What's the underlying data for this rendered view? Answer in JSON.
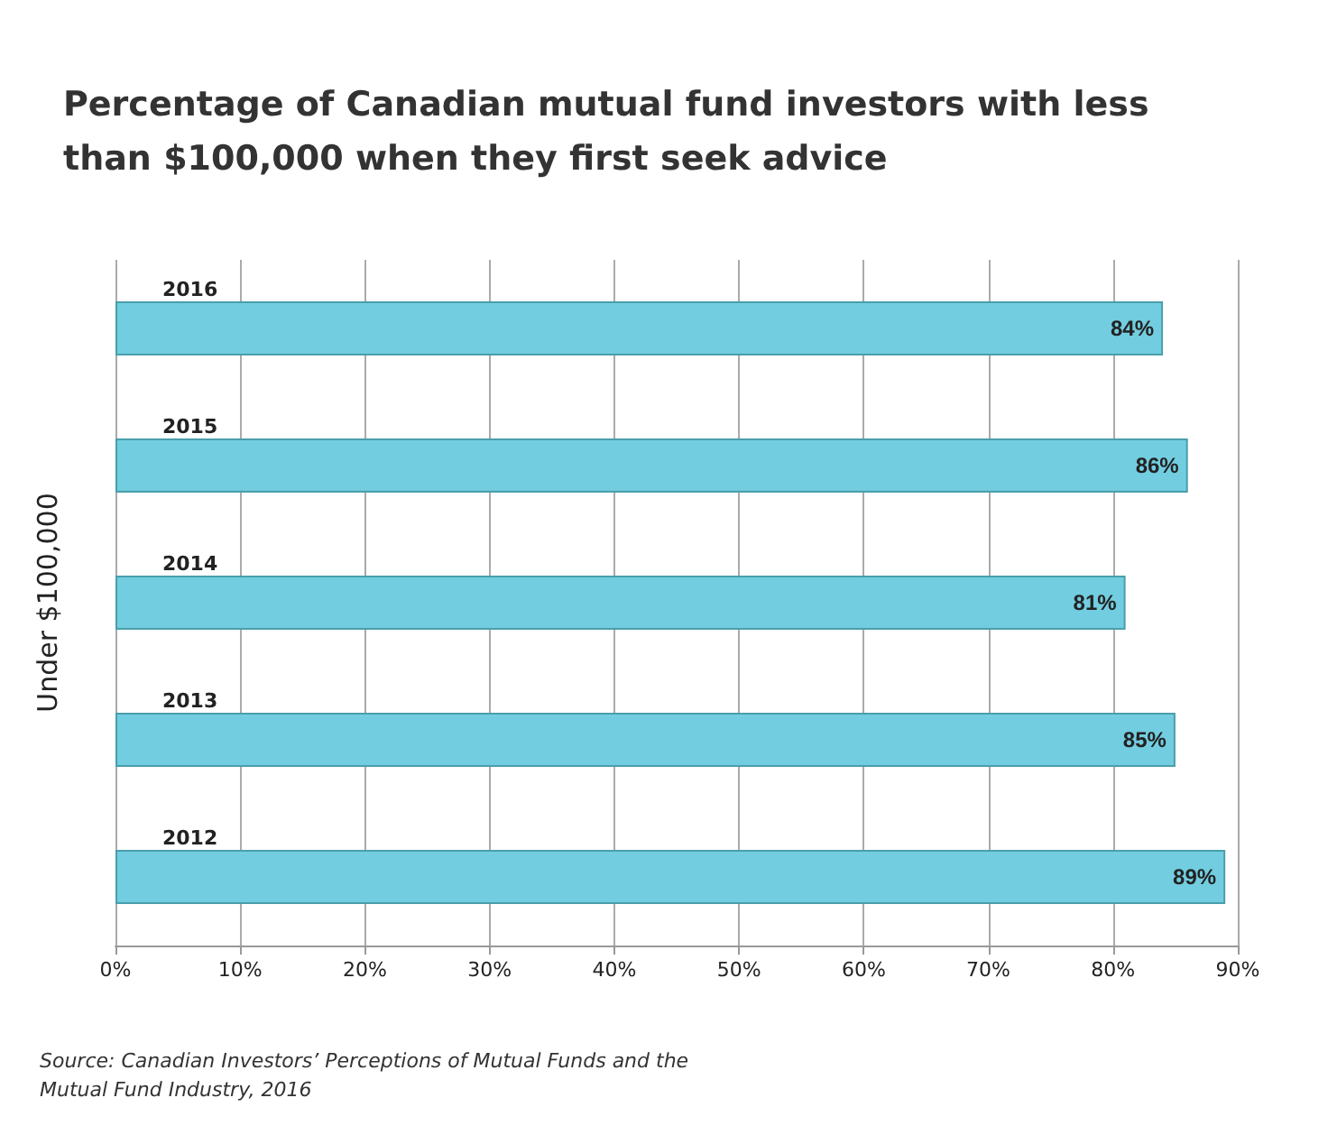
{
  "chart_data": {
    "type": "bar",
    "orientation": "horizontal",
    "title": "Percentage of Canadian mutual fund investors with less than $100,000 when they first seek advice",
    "ylabel": "Under $100,000",
    "categories": [
      "2016",
      "2015",
      "2014",
      "2013",
      "2012"
    ],
    "values": [
      84,
      86,
      81,
      85,
      89
    ],
    "value_labels": [
      "84%",
      "86%",
      "81%",
      "85%",
      "89%"
    ],
    "color": "#72cde0",
    "xlim": [
      0,
      90
    ],
    "xticks": [
      {
        "value": 0,
        "label": "0%"
      },
      {
        "value": 10,
        "label": "10%"
      },
      {
        "value": 20,
        "label": "20%"
      },
      {
        "value": 30,
        "label": "30%"
      },
      {
        "value": 40,
        "label": "40%"
      },
      {
        "value": 50,
        "label": "50%"
      },
      {
        "value": 60,
        "label": "60%"
      },
      {
        "value": 70,
        "label": "70%"
      },
      {
        "value": 80,
        "label": "80%"
      },
      {
        "value": 90,
        "label": "90%"
      }
    ],
    "grid": "x",
    "annotations": [
      "Source: Canadian Investors’ Perceptions of Mutual Funds and the Mutual Fund Industry, 2016"
    ]
  }
}
